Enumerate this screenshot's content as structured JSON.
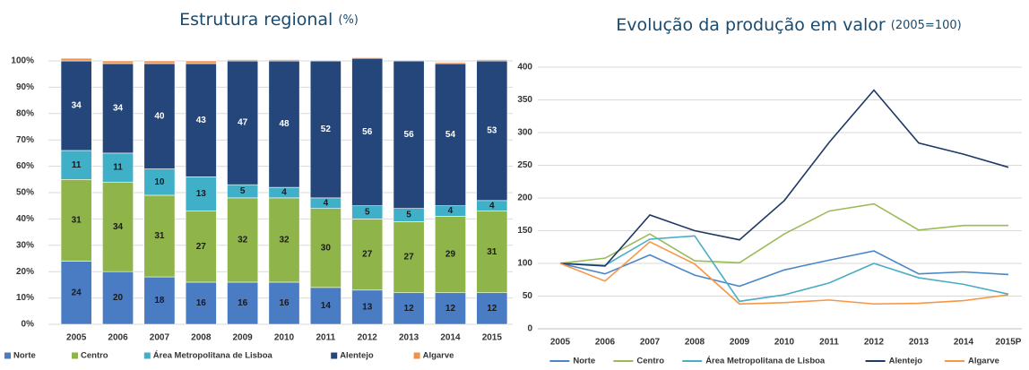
{
  "chart_data": [
    {
      "type": "stacked_bar",
      "title": "Estrutura regional",
      "title_unit": "(%)",
      "categories": [
        "2005",
        "2006",
        "2007",
        "2008",
        "2009",
        "2010",
        "2011",
        "2012",
        "2013",
        "2014",
        "2015"
      ],
      "series": [
        {
          "name": "Norte",
          "color": "#4a7cc4",
          "data_labels": true,
          "values": [
            24,
            20,
            18,
            16,
            16,
            16,
            14,
            13,
            12,
            12,
            12
          ]
        },
        {
          "name": "Centro",
          "color": "#8fb54a",
          "data_labels": true,
          "values": [
            31,
            34,
            31,
            27,
            32,
            32,
            30,
            27,
            27,
            29,
            31
          ]
        },
        {
          "name": "Área Metropolitana de Lisboa",
          "color": "#3fb0c8",
          "data_labels": true,
          "values": [
            11,
            11,
            10,
            13,
            5,
            4,
            4,
            5,
            5,
            4,
            4
          ]
        },
        {
          "name": "Alentejo",
          "color": "#24467a",
          "data_labels": true,
          "values": [
            34,
            34,
            40,
            43,
            47,
            48,
            52,
            56,
            56,
            54,
            53
          ]
        },
        {
          "name": "Algarve",
          "color": "#f0924a",
          "data_labels": false,
          "values": [
            1,
            1,
            1,
            1,
            0.5,
            0.5,
            0.3,
            0.3,
            0.3,
            0.5,
            0.5
          ]
        }
      ],
      "ylim": [
        0,
        100
      ],
      "yticks": [
        {
          "value": 0,
          "label": "0%"
        },
        {
          "value": 10,
          "label": "10%"
        },
        {
          "value": 20,
          "label": "20%"
        },
        {
          "value": 30,
          "label": "30%"
        },
        {
          "value": 40,
          "label": "40%"
        },
        {
          "value": 50,
          "label": "50%"
        },
        {
          "value": 60,
          "label": "60%"
        },
        {
          "value": 70,
          "label": "70%"
        },
        {
          "value": 80,
          "label": "80%"
        },
        {
          "value": 90,
          "label": "90%"
        },
        {
          "value": 100,
          "label": "100%"
        }
      ],
      "grid": true
    },
    {
      "type": "line",
      "title": "Evolução da produção em valor",
      "title_unit": "(2005=100)",
      "categories": [
        "2005",
        "2006",
        "2007",
        "2008",
        "2009",
        "2010",
        "2011",
        "2012",
        "2013",
        "2014",
        "2015P"
      ],
      "series": [
        {
          "name": "Norte",
          "color": "#4a86c8",
          "values": [
            100,
            84,
            113,
            82,
            65,
            90,
            105,
            119,
            84,
            87,
            83
          ]
        },
        {
          "name": "Centro",
          "color": "#9bbb59",
          "values": [
            100,
            108,
            145,
            104,
            101,
            145,
            180,
            191,
            151,
            158,
            158
          ]
        },
        {
          "name": "Área Metropolitana de Lisboa",
          "color": "#4bacc6",
          "values": [
            100,
            97,
            137,
            142,
            42,
            52,
            70,
            100,
            78,
            68,
            53
          ]
        },
        {
          "name": "Alentejo",
          "color": "#1f3864",
          "values": [
            100,
            96,
            174,
            150,
            136,
            196,
            285,
            365,
            284,
            267,
            247
          ]
        },
        {
          "name": "Algarve",
          "color": "#f79646",
          "values": [
            100,
            73,
            133,
            99,
            38,
            40,
            44,
            38,
            39,
            43,
            52
          ]
        }
      ],
      "ylim": [
        0,
        400
      ],
      "yticks": [
        0,
        50,
        100,
        150,
        200,
        250,
        300,
        350,
        400
      ],
      "grid": true
    }
  ]
}
